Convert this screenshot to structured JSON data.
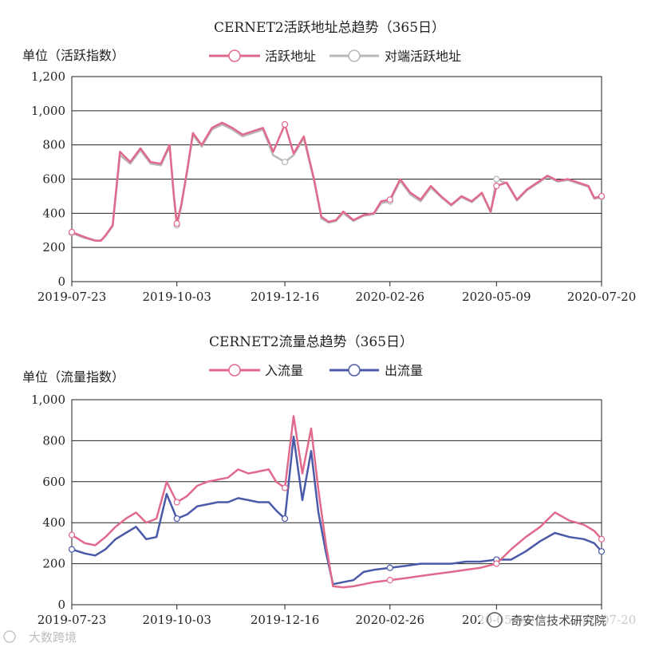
{
  "charts": [
    {
      "title": "CERNET2活跃地址总趋势（365日）",
      "unit_label": "单位（活跃指数）",
      "legend": [
        {
          "label": "活跃地址",
          "color": "#e06a8c"
        },
        {
          "label": "对端活跃地址",
          "color": "#b8b8b8"
        }
      ],
      "x_ticks": [
        "2019-07-23",
        "2019-10-03",
        "2019-12-16",
        "2020-02-26",
        "2020-05-09",
        "2020-07-20"
      ],
      "y_ticks": [
        "0",
        "200",
        "400",
        "600",
        "800",
        "1,000",
        "1,200"
      ]
    },
    {
      "title": "CERNET2流量总趋势（365日）",
      "unit_label": "单位（流量指数）",
      "legend": [
        {
          "label": "入流量",
          "color": "#e06a8c"
        },
        {
          "label": "出流量",
          "color": "#4a5aa8"
        }
      ],
      "x_ticks": [
        "2019-07-23",
        "2019-10-03",
        "2019-12-16",
        "2020-02-26",
        "2020-05-09",
        "2020-07-20"
      ],
      "y_ticks": [
        "0",
        "200",
        "400",
        "600",
        "800",
        "1,000"
      ]
    }
  ],
  "watermarks": {
    "bottom_left": "大数跨境",
    "bottom_right": "奇安信技术研究院"
  },
  "chart_data": [
    {
      "type": "line",
      "title": "CERNET2活跃地址总趋势（365日）",
      "ylabel": "单位（活跃指数）",
      "ylim": [
        0,
        1200
      ],
      "y_ticks": [
        0,
        200,
        400,
        600,
        800,
        1000,
        1200
      ],
      "x_tick_labels": [
        "2019-07-23",
        "2019-10-03",
        "2019-12-16",
        "2020-02-26",
        "2020-05-09",
        "2020-07-20"
      ],
      "x": [
        "2019-07-23",
        "2019-08-01",
        "2019-08-08",
        "2019-08-12",
        "2019-08-15",
        "2019-08-20",
        "2019-08-25",
        "2019-09-01",
        "2019-09-08",
        "2019-09-15",
        "2019-09-22",
        "2019-09-28",
        "2019-10-01",
        "2019-10-03",
        "2019-10-06",
        "2019-10-10",
        "2019-10-14",
        "2019-10-20",
        "2019-10-27",
        "2019-11-03",
        "2019-11-10",
        "2019-11-17",
        "2019-11-24",
        "2019-12-01",
        "2019-12-08",
        "2019-12-16",
        "2019-12-22",
        "2019-12-29",
        "2020-01-05",
        "2020-01-10",
        "2020-01-15",
        "2020-01-20",
        "2020-01-25",
        "2020-02-01",
        "2020-02-08",
        "2020-02-15",
        "2020-02-20",
        "2020-02-26",
        "2020-03-04",
        "2020-03-11",
        "2020-03-18",
        "2020-03-25",
        "2020-04-01",
        "2020-04-08",
        "2020-04-15",
        "2020-04-22",
        "2020-04-29",
        "2020-05-05",
        "2020-05-09",
        "2020-05-16",
        "2020-05-23",
        "2020-05-30",
        "2020-06-06",
        "2020-06-13",
        "2020-06-20",
        "2020-06-27",
        "2020-07-04",
        "2020-07-11",
        "2020-07-15",
        "2020-07-20"
      ],
      "series": [
        {
          "name": "活跃地址",
          "values": [
            290,
            260,
            240,
            240,
            270,
            330,
            760,
            700,
            780,
            700,
            690,
            800,
            500,
            340,
            450,
            650,
            870,
            800,
            900,
            930,
            900,
            860,
            880,
            900,
            760,
            920,
            750,
            850,
            600,
            380,
            350,
            360,
            410,
            360,
            390,
            400,
            470,
            480,
            600,
            520,
            480,
            560,
            500,
            450,
            500,
            470,
            520,
            410,
            560,
            580,
            480,
            540,
            580,
            620,
            590,
            600,
            580,
            560,
            490,
            500
          ]
        },
        {
          "name": "对端活跃地址",
          "values": [
            285,
            255,
            240,
            240,
            265,
            325,
            740,
            690,
            770,
            690,
            680,
            790,
            490,
            330,
            440,
            640,
            860,
            790,
            890,
            920,
            890,
            850,
            870,
            890,
            740,
            700,
            740,
            840,
            590,
            370,
            345,
            355,
            400,
            355,
            385,
            395,
            460,
            470,
            590,
            510,
            470,
            550,
            495,
            445,
            495,
            465,
            515,
            405,
            600,
            575,
            475,
            535,
            575,
            615,
            585,
            595,
            575,
            555,
            485,
            495
          ]
        }
      ]
    },
    {
      "type": "line",
      "title": "CERNET2流量总趋势（365日）",
      "ylabel": "单位（流量指数）",
      "ylim": [
        0,
        1000
      ],
      "y_ticks": [
        0,
        200,
        400,
        600,
        800,
        1000
      ],
      "x_tick_labels": [
        "2019-07-23",
        "2019-10-03",
        "2019-12-16",
        "2020-02-26",
        "2020-05-09",
        "2020-07-20"
      ],
      "x": [
        "2019-07-23",
        "2019-08-01",
        "2019-08-08",
        "2019-08-15",
        "2019-08-22",
        "2019-08-29",
        "2019-09-05",
        "2019-09-12",
        "2019-09-19",
        "2019-09-26",
        "2019-10-03",
        "2019-10-10",
        "2019-10-17",
        "2019-10-24",
        "2019-10-31",
        "2019-11-07",
        "2019-11-14",
        "2019-11-21",
        "2019-11-28",
        "2019-12-05",
        "2019-12-10",
        "2019-12-16",
        "2019-12-22",
        "2019-12-28",
        "2020-01-03",
        "2020-01-08",
        "2020-01-13",
        "2020-01-18",
        "2020-01-25",
        "2020-02-01",
        "2020-02-08",
        "2020-02-15",
        "2020-02-26",
        "2020-03-08",
        "2020-03-18",
        "2020-03-28",
        "2020-04-08",
        "2020-04-18",
        "2020-04-28",
        "2020-05-09",
        "2020-05-19",
        "2020-05-29",
        "2020-06-08",
        "2020-06-18",
        "2020-06-28",
        "2020-07-08",
        "2020-07-15",
        "2020-07-20"
      ],
      "series": [
        {
          "name": "入流量",
          "values": [
            340,
            300,
            290,
            330,
            380,
            420,
            450,
            400,
            420,
            600,
            500,
            530,
            580,
            600,
            610,
            620,
            660,
            640,
            650,
            660,
            600,
            570,
            920,
            640,
            860,
            560,
            300,
            90,
            85,
            90,
            100,
            110,
            120,
            130,
            140,
            150,
            160,
            170,
            180,
            200,
            270,
            330,
            380,
            450,
            410,
            390,
            360,
            320
          ]
        },
        {
          "name": "出流量",
          "values": [
            270,
            250,
            240,
            270,
            320,
            350,
            380,
            320,
            330,
            540,
            420,
            440,
            480,
            490,
            500,
            500,
            520,
            510,
            500,
            500,
            460,
            420,
            820,
            510,
            750,
            450,
            260,
            100,
            110,
            120,
            160,
            170,
            180,
            190,
            200,
            200,
            200,
            210,
            210,
            220,
            220,
            260,
            310,
            350,
            330,
            320,
            300,
            260
          ]
        }
      ]
    }
  ]
}
